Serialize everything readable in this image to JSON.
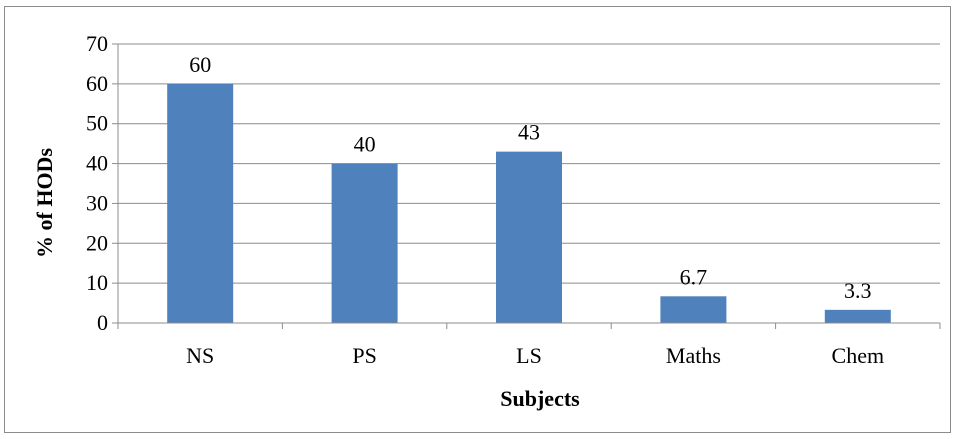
{
  "chart_data": {
    "type": "bar",
    "title": "",
    "xlabel": "Subjects",
    "ylabel": "% of HODs",
    "categories": [
      "NS",
      "PS",
      "LS",
      "Maths",
      "Chem"
    ],
    "values": [
      60,
      40,
      43,
      6.7,
      3.3
    ],
    "data_labels": [
      "60",
      "40",
      "43",
      "6.7",
      "3.3"
    ],
    "yticks": [
      0,
      10,
      20,
      30,
      40,
      50,
      60,
      70
    ],
    "ytick_labels": [
      "0",
      "10",
      "20",
      "30",
      "40",
      "50",
      "60",
      "70"
    ],
    "ylim": [
      0,
      70
    ],
    "grid": true,
    "legend": "none",
    "bar_color": "#4f81bd",
    "grid_color": "#8c8c8c"
  }
}
